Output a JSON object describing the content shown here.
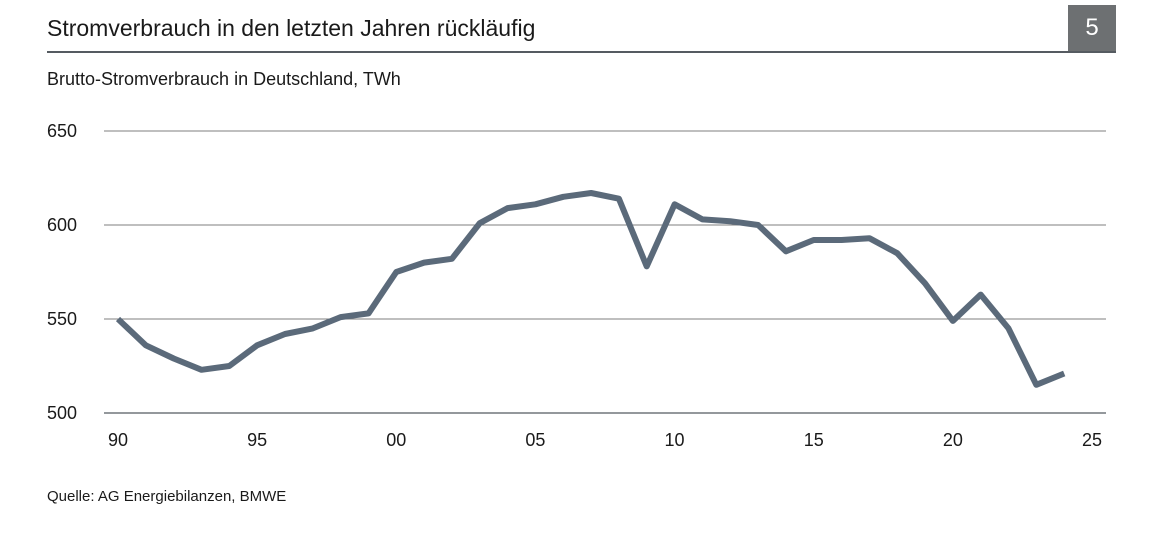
{
  "header": {
    "title": "Stromverbrauch in den letzten Jahren rückläufig",
    "page_number": "5"
  },
  "colors": {
    "line": "#5b6a7a",
    "grid": "#7f7f7f",
    "badge": "#6d7072"
  },
  "chart_data": {
    "type": "line",
    "title": "Stromverbrauch in den letzten Jahren rückläufig",
    "subtitle": "Brutto-Stromverbrauch in Deutschland, TWh",
    "xlabel": "",
    "ylabel": "TWh",
    "xlim": [
      1990,
      2025
    ],
    "ylim": [
      500,
      650
    ],
    "grid": true,
    "y_ticks": [
      {
        "value": 500,
        "label": "500"
      },
      {
        "value": 550,
        "label": "550"
      },
      {
        "value": 600,
        "label": "600"
      },
      {
        "value": 650,
        "label": "650"
      }
    ],
    "x_ticks": [
      {
        "value": 1990,
        "label": "90"
      },
      {
        "value": 1995,
        "label": "95"
      },
      {
        "value": 2000,
        "label": "00"
      },
      {
        "value": 2005,
        "label": "05"
      },
      {
        "value": 2010,
        "label": "10"
      },
      {
        "value": 2015,
        "label": "15"
      },
      {
        "value": 2020,
        "label": "20"
      },
      {
        "value": 2025,
        "label": "25"
      }
    ],
    "series": [
      {
        "name": "Brutto-Stromverbrauch",
        "x": [
          1990,
          1991,
          1992,
          1993,
          1994,
          1995,
          1996,
          1997,
          1998,
          1999,
          2000,
          2001,
          2002,
          2003,
          2004,
          2005,
          2006,
          2007,
          2008,
          2009,
          2010,
          2011,
          2012,
          2013,
          2014,
          2015,
          2016,
          2017,
          2018,
          2019,
          2020,
          2021,
          2022,
          2023,
          2024
        ],
        "values": [
          550,
          536,
          529,
          523,
          525,
          536,
          542,
          545,
          551,
          553,
          575,
          580,
          582,
          601,
          609,
          611,
          615,
          617,
          614,
          578,
          611,
          603,
          602,
          600,
          586,
          592,
          592,
          593,
          585,
          569,
          549,
          563,
          545,
          515,
          521
        ]
      }
    ]
  },
  "footer": {
    "source": "Quelle: AG Energiebilanzen, BMWE"
  }
}
